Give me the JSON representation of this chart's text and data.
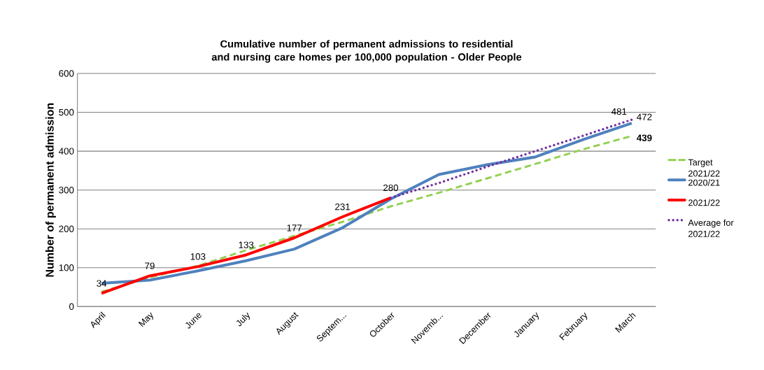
{
  "chart_data": {
    "type": "line",
    "title": "Cumulative number of permanent admissions to residential and nursing care homes per 100,000 population - Older People",
    "ylabel": "Number of permanent admission",
    "categories": [
      "April",
      "May",
      "June",
      "July",
      "August",
      "Septem...",
      "October",
      "Novemb...",
      "December",
      "January",
      "February",
      "March"
    ],
    "series": [
      {
        "name": "Target 2021/22",
        "color": "#92d050",
        "line_style": "dashed",
        "values": [
          38,
          75,
          105,
          145,
          182,
          218,
          258,
          293,
          330,
          367,
          405,
          439
        ],
        "value_labels": [
          null,
          null,
          null,
          null,
          null,
          null,
          null,
          null,
          null,
          null,
          null,
          "**439**"
        ]
      },
      {
        "name": "2020/21",
        "color": "#4f81bd",
        "line_style": "solid",
        "values": [
          60,
          68,
          92,
          118,
          148,
          203,
          277,
          340,
          365,
          385,
          430,
          472
        ],
        "value_labels": [
          null,
          null,
          null,
          null,
          null,
          null,
          null,
          null,
          null,
          null,
          null,
          "472"
        ]
      },
      {
        "name": "2021/22",
        "color": "#ff0000",
        "line_style": "solid",
        "values": [
          34,
          79,
          103,
          133,
          177,
          231,
          280,
          null,
          null,
          null,
          null,
          null
        ],
        "value_labels": [
          "34",
          "79",
          "103",
          "133",
          "177",
          "231",
          "280",
          null,
          null,
          null,
          null,
          null
        ]
      },
      {
        "name": "Average for 2021/22",
        "color": "#7030a0",
        "line_style": "dotted",
        "values": [
          null,
          null,
          null,
          null,
          null,
          null,
          280,
          318,
          360,
          400,
          440,
          481
        ],
        "value_labels": [
          null,
          null,
          null,
          null,
          null,
          null,
          null,
          null,
          null,
          null,
          null,
          "481"
        ]
      }
    ],
    "ylim": [
      0,
      600
    ],
    "yticks": [
      0,
      100,
      200,
      300,
      400,
      500,
      600
    ],
    "grid": "y",
    "legend": "right",
    "marker": "none"
  }
}
